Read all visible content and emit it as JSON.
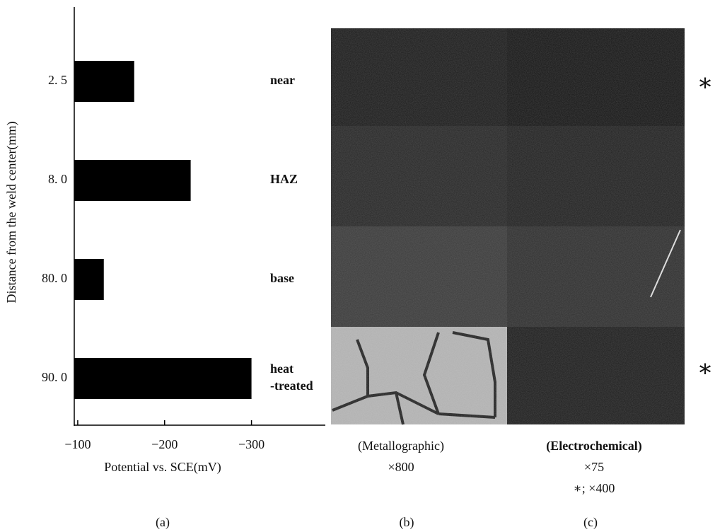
{
  "chart_data": {
    "type": "bar",
    "orientation": "horizontal",
    "categories": [
      "2. 5",
      "8. 0",
      "80. 0",
      "90. 0"
    ],
    "values": [
      -165,
      -230,
      -130,
      -300
    ],
    "color": "#000000",
    "xlim": [
      -96,
      -385
    ],
    "xticks": [
      {
        "value": -100,
        "label": "−100"
      },
      {
        "value": -200,
        "label": "−200"
      },
      {
        "value": -300,
        "label": "−300"
      }
    ],
    "xlabel": "Potential vs.  SCE(mV)",
    "ylabel": "Distance from the weld center(mm)",
    "region_labels": [
      [
        "near"
      ],
      [
        "HAZ"
      ],
      [
        "base"
      ],
      [
        "heat",
        "-treated"
      ]
    ],
    "panel_label": "(a)"
  },
  "micrographs": {
    "left": {
      "caption": "(Metallographic)",
      "magnification": "×800",
      "panel_label": "(b)"
    },
    "right": {
      "caption": "(Electrochemical)",
      "magnification": "×75",
      "note": "∗; ×400",
      "panel_label": "(c)"
    },
    "markers": [
      "∗",
      "∗"
    ]
  }
}
